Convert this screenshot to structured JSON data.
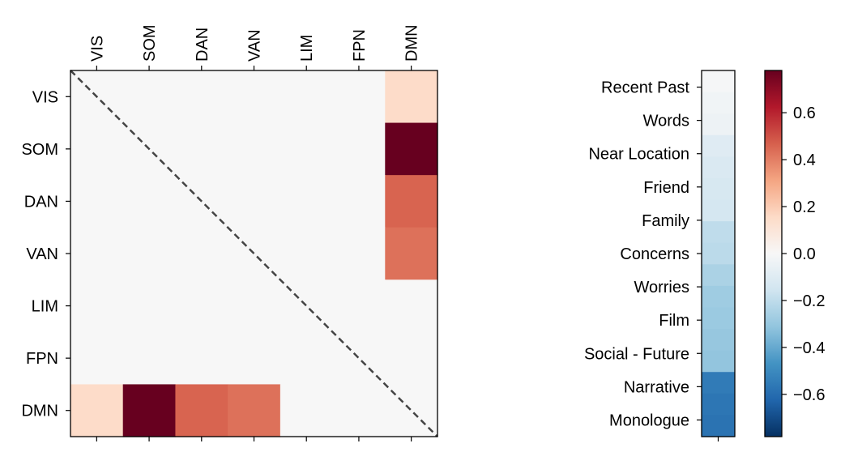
{
  "chart_data": [
    {
      "type": "heatmap",
      "title": "",
      "x_labels": [
        "VIS",
        "SOM",
        "DAN",
        "VAN",
        "LIM",
        "FPN",
        "DMN"
      ],
      "y_labels": [
        "VIS",
        "SOM",
        "DAN",
        "VAN",
        "LIM",
        "FPN",
        "DMN"
      ],
      "x_tick_position": "top",
      "colormap": "RdBu_r",
      "vmin": -0.78,
      "vmax": 0.78,
      "diagonal_line": "dashed",
      "matrix": [
        [
          0,
          0,
          0,
          0,
          0,
          0,
          0.15
        ],
        [
          0,
          0,
          0,
          0,
          0,
          0,
          0.78
        ],
        [
          0,
          0,
          0,
          0,
          0,
          0,
          0.46
        ],
        [
          0,
          0,
          0,
          0,
          0,
          0,
          0.43
        ],
        [
          0,
          0,
          0,
          0,
          0,
          0,
          0
        ],
        [
          0,
          0,
          0,
          0,
          0,
          0,
          0
        ],
        [
          0.15,
          0.78,
          0.46,
          0.43,
          0,
          0,
          0
        ]
      ]
    },
    {
      "type": "heatmap",
      "title": "",
      "orientation": "single-column",
      "categories": [
        "Recent Past",
        "Words",
        "Near Location",
        "Friend",
        "Family",
        "Concerns",
        "Worries",
        "Film",
        "Social - Future",
        "Narrative",
        "Monologue"
      ],
      "rows": [
        {
          "label": "Recent Past",
          "value": -0.01
        },
        {
          "label": "",
          "value": -0.03
        },
        {
          "label": "Words",
          "value": -0.04
        },
        {
          "label": "",
          "value": -0.1
        },
        {
          "label": "Near Location",
          "value": -0.12
        },
        {
          "label": "Friend",
          "value": -0.13
        },
        {
          "label": "Family",
          "value": -0.14
        },
        {
          "label": "",
          "value": -0.2
        },
        {
          "label": "Concerns",
          "value": -0.21
        },
        {
          "label": "Worries",
          "value": -0.25
        },
        {
          "label": "",
          "value": -0.28
        },
        {
          "label": "Film",
          "value": -0.29
        },
        {
          "label": "Social - Future",
          "value": -0.3
        },
        {
          "label": "",
          "value": -0.31
        },
        {
          "label": "Narrative",
          "value": -0.55
        },
        {
          "label": "",
          "value": -0.57
        },
        {
          "label": "Monologue",
          "value": -0.58
        }
      ]
    },
    {
      "type": "colorbar",
      "colormap": "RdBu_r",
      "vmin": -0.78,
      "vmax": 0.78,
      "ticks": [
        0.6,
        0.4,
        0.2,
        0.0,
        -0.2,
        -0.4,
        -0.6
      ],
      "tick_labels": [
        "0.6",
        "0.4",
        "0.2",
        "0.0",
        "−0.2",
        "−0.4",
        "−0.6"
      ]
    }
  ]
}
